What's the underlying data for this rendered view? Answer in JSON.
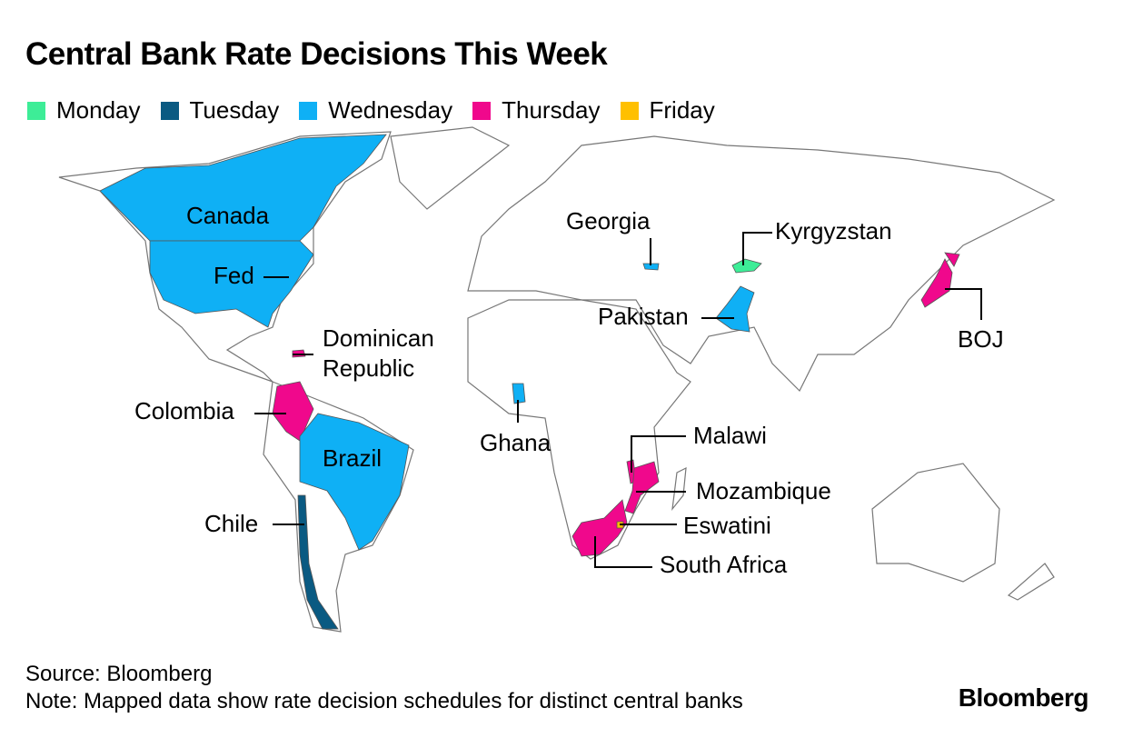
{
  "title": "Central Bank Rate Decisions This Week",
  "legend": [
    {
      "label": "Monday",
      "color": "#3ded97"
    },
    {
      "label": "Tuesday",
      "color": "#0a5a82"
    },
    {
      "label": "Wednesday",
      "color": "#0fb0f5"
    },
    {
      "label": "Thursday",
      "color": "#f0088c"
    },
    {
      "label": "Friday",
      "color": "#ffc000"
    }
  ],
  "labels": [
    {
      "text": "Canada",
      "day": "Wednesday"
    },
    {
      "text": "Fed",
      "day": "Wednesday"
    },
    {
      "text": "Dominican Republic",
      "day": "Thursday"
    },
    {
      "text": "Colombia",
      "day": "Thursday"
    },
    {
      "text": "Brazil",
      "day": "Wednesday"
    },
    {
      "text": "Chile",
      "day": "Tuesday"
    },
    {
      "text": "Georgia",
      "day": "Wednesday"
    },
    {
      "text": "Kyrgyzstan",
      "day": "Monday"
    },
    {
      "text": "Pakistan",
      "day": "Wednesday"
    },
    {
      "text": "BOJ",
      "day": "Thursday"
    },
    {
      "text": "Ghana",
      "day": "Wednesday"
    },
    {
      "text": "Malawi",
      "day": "Thursday"
    },
    {
      "text": "Mozambique",
      "day": "Thursday"
    },
    {
      "text": "South Africa",
      "day": "Thursday"
    },
    {
      "text": "Eswatini",
      "day": "Friday"
    }
  ],
  "source": "Source: Bloomberg",
  "note": "Note: Mapped data show rate decision schedules for distinct central banks",
  "brand": "Bloomberg"
}
